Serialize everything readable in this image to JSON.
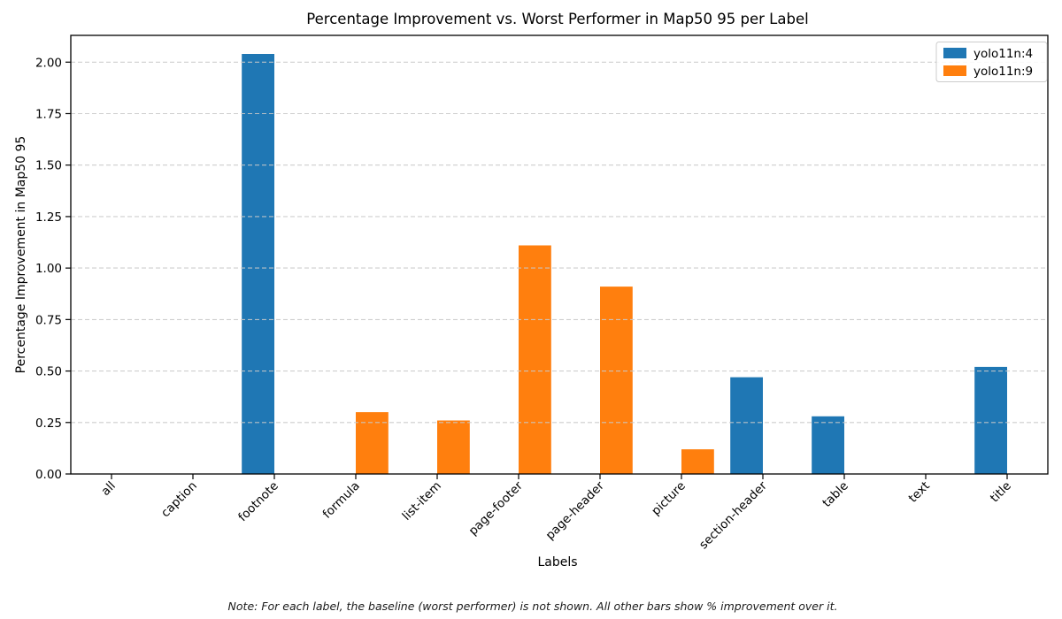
{
  "figure": {
    "title": "Percentage Improvement vs. Worst Performer in Map50 95 per Label",
    "note": "Note: For each label, the baseline (worst performer) is not shown. All other bars show % improvement over it."
  },
  "chart_data": {
    "type": "bar",
    "title": "Percentage Improvement vs. Worst Performer in Map50 95 per Label",
    "xlabel": "Labels",
    "ylabel": "Percentage Improvement in Map50 95",
    "categories": [
      "all",
      "caption",
      "footnote",
      "formula",
      "list-item",
      "page-footer",
      "page-header",
      "picture",
      "section-header",
      "table",
      "text",
      "title"
    ],
    "series": [
      {
        "name": "yolo11n:4",
        "color": "#1f77b4",
        "values": [
          0,
          0,
          2.04,
          0,
          0,
          0,
          0,
          0,
          0.47,
          0.28,
          0,
          0.52
        ]
      },
      {
        "name": "yolo11n:9",
        "color": "#ff7f0e",
        "values": [
          0,
          0,
          0,
          0.3,
          0.26,
          1.11,
          0.91,
          0.12,
          0,
          0,
          0,
          0
        ]
      }
    ],
    "ylim": [
      0,
      2.13
    ],
    "yticks": [
      0.0,
      0.25,
      0.5,
      0.75,
      1.0,
      1.25,
      1.5,
      1.75,
      2.0
    ],
    "ytick_labels": [
      "0.00",
      "0.25",
      "0.50",
      "0.75",
      "1.00",
      "1.25",
      "1.50",
      "1.75",
      "2.00"
    ],
    "grid": "horizontal-dashed",
    "grid_color": "#c9c9c9",
    "spine_color": "#000000",
    "legend_position": "upper-right",
    "bar_width_frac": 0.4,
    "xtick_rotation": 45
  }
}
